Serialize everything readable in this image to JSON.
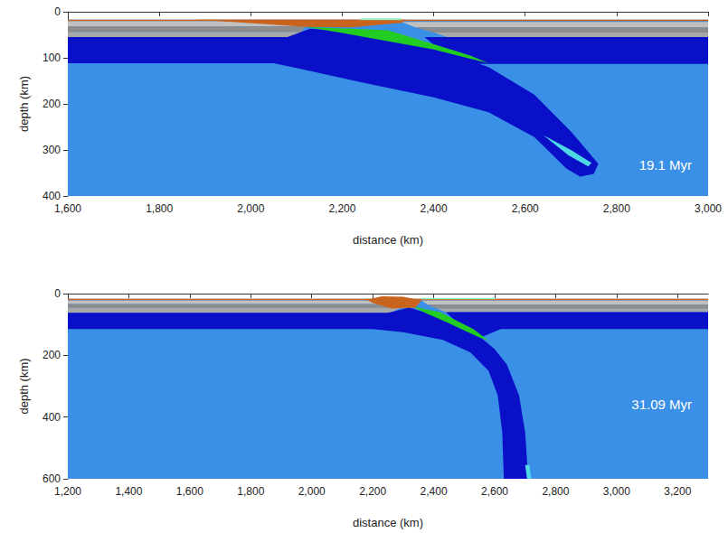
{
  "chart_data": [
    {
      "type": "polygon",
      "x_label": "distance (km)",
      "y_label": "depth (km)",
      "xlim": [
        1600,
        3000
      ],
      "xticks": [
        1600,
        1800,
        2000,
        2200,
        2400,
        2600,
        2800,
        3000
      ],
      "ylim": [
        400,
        0
      ],
      "yticks": [
        0,
        100,
        200,
        300,
        400
      ],
      "annotation": "19.1 Myr",
      "series": [
        {
          "color": "#3a8fe6",
          "values": [
            [
              1600,
              17
            ],
            [
              3000,
              17
            ],
            [
              3000,
              400
            ],
            [
              1600,
              400
            ]
          ]
        },
        {
          "color": "#c0c0c0",
          "values": [
            [
              1600,
              20
            ],
            [
              2110,
              20
            ],
            [
              2120,
              32
            ],
            [
              1600,
              32
            ]
          ]
        },
        {
          "color": "#8c8c8c",
          "values": [
            [
              1600,
              32
            ],
            [
              2120,
              32
            ],
            [
              2110,
              44
            ],
            [
              1600,
              44
            ]
          ]
        },
        {
          "color": "#a8a8a8",
          "values": [
            [
              1600,
              44
            ],
            [
              2110,
              44
            ],
            [
              2090,
              55
            ],
            [
              1600,
              55
            ]
          ]
        },
        {
          "color": "#c0c0c0",
          "values": [
            [
              2330,
              22
            ],
            [
              3000,
              22
            ],
            [
              3000,
              34
            ],
            [
              2360,
              34
            ]
          ]
        },
        {
          "color": "#8c8c8c",
          "values": [
            [
              2360,
              34
            ],
            [
              3000,
              34
            ],
            [
              3000,
              45
            ],
            [
              2400,
              45
            ]
          ]
        },
        {
          "color": "#a8a8a8",
          "values": [
            [
              2400,
              45
            ],
            [
              3000,
              45
            ],
            [
              3000,
              55
            ],
            [
              2430,
              55
            ]
          ]
        },
        {
          "color": "#0a10c8",
          "values": [
            [
              2380,
              55
            ],
            [
              3000,
              55
            ],
            [
              3000,
              113
            ],
            [
              2480,
              113
            ],
            [
              2420,
              88
            ]
          ]
        },
        {
          "color": "#0a10c8",
          "values": [
            [
              1600,
              55
            ],
            [
              2080,
              55
            ],
            [
              2130,
              37
            ],
            [
              2250,
              45
            ],
            [
              2400,
              80
            ],
            [
              2520,
              120
            ],
            [
              2620,
              180
            ],
            [
              2700,
              260
            ],
            [
              2760,
              330
            ],
            [
              2750,
              352
            ],
            [
              2720,
              358
            ],
            [
              2690,
              340
            ],
            [
              2620,
              272
            ],
            [
              2520,
              218
            ],
            [
              2400,
              186
            ],
            [
              2250,
              155
            ],
            [
              2100,
              122
            ],
            [
              2050,
              112
            ],
            [
              1600,
              112
            ]
          ]
        },
        {
          "color": "#22cc22",
          "values": [
            [
              2120,
              33
            ],
            [
              2300,
              40
            ],
            [
              2480,
              95
            ],
            [
              2520,
              112
            ],
            [
              2400,
              82
            ],
            [
              2200,
              46
            ]
          ]
        },
        {
          "color": "#4fd7e6",
          "values": [
            [
              2640,
              268
            ],
            [
              2700,
              300
            ],
            [
              2745,
              328
            ],
            [
              2738,
              336
            ],
            [
              2695,
              312
            ]
          ]
        },
        {
          "color": "#c8641e",
          "values": [
            [
              1880,
              17
            ],
            [
              2340,
              17
            ],
            [
              2330,
              24
            ],
            [
              2220,
              34
            ],
            [
              2120,
              33
            ],
            [
              1960,
              22
            ]
          ]
        },
        {
          "color": "#c8641e",
          "values": [
            [
              1600,
              17
            ],
            [
              3000,
              17
            ],
            [
              3000,
              20
            ],
            [
              1600,
              20
            ]
          ]
        },
        {
          "color": "#90f0c0",
          "values": [
            [
              2240,
              14
            ],
            [
              2330,
              14
            ],
            [
              2330,
              18
            ],
            [
              2240,
              18
            ]
          ]
        }
      ]
    },
    {
      "type": "polygon",
      "x_label": "distance (km)",
      "y_label": "depth (km)",
      "xlim": [
        1200,
        3300
      ],
      "xticks": [
        1200,
        1400,
        1600,
        1800,
        2000,
        2200,
        2400,
        2600,
        2800,
        3000,
        3200
      ],
      "ylim": [
        600,
        0
      ],
      "yticks": [
        0,
        200,
        400,
        600
      ],
      "annotation": "31.09 Myr",
      "series": [
        {
          "color": "#3a8fe6",
          "values": [
            [
              1200,
              17
            ],
            [
              3300,
              17
            ],
            [
              3300,
              600
            ],
            [
              1200,
              600
            ]
          ]
        },
        {
          "color": "#c0c0c0",
          "values": [
            [
              1200,
              22
            ],
            [
              2290,
              22
            ],
            [
              2300,
              34
            ],
            [
              1200,
              34
            ]
          ]
        },
        {
          "color": "#8c8c8c",
          "values": [
            [
              1200,
              34
            ],
            [
              2300,
              34
            ],
            [
              2290,
              46
            ],
            [
              1200,
              46
            ]
          ]
        },
        {
          "color": "#a8a8a8",
          "values": [
            [
              1200,
              46
            ],
            [
              2290,
              46
            ],
            [
              2260,
              62
            ],
            [
              1200,
              62
            ]
          ]
        },
        {
          "color": "#c0c0c0",
          "values": [
            [
              2360,
              22
            ],
            [
              3300,
              22
            ],
            [
              3300,
              36
            ],
            [
              2380,
              36
            ]
          ]
        },
        {
          "color": "#8c8c8c",
          "values": [
            [
              2380,
              36
            ],
            [
              3300,
              36
            ],
            [
              3300,
              48
            ],
            [
              2410,
              48
            ]
          ]
        },
        {
          "color": "#a8a8a8",
          "values": [
            [
              2410,
              48
            ],
            [
              3300,
              48
            ],
            [
              3300,
              60
            ],
            [
              2440,
              60
            ]
          ]
        },
        {
          "color": "#0a10c8",
          "values": [
            [
              2440,
              60
            ],
            [
              3300,
              60
            ],
            [
              3300,
              115
            ],
            [
              2620,
              115
            ],
            [
              2560,
              140
            ],
            [
              2470,
              88
            ]
          ]
        },
        {
          "color": "#0a10c8",
          "values": [
            [
              1200,
              62
            ],
            [
              2250,
              62
            ],
            [
              2320,
              45
            ],
            [
              2450,
              85
            ],
            [
              2540,
              130
            ],
            [
              2600,
              180
            ],
            [
              2640,
              230
            ],
            [
              2680,
              330
            ],
            [
              2700,
              450
            ],
            [
              2710,
              600
            ],
            [
              2630,
              600
            ],
            [
              2625,
              450
            ],
            [
              2610,
              330
            ],
            [
              2580,
              250
            ],
            [
              2520,
              190
            ],
            [
              2430,
              150
            ],
            [
              2300,
              125
            ],
            [
              2200,
              115
            ],
            [
              1200,
              115
            ]
          ]
        },
        {
          "color": "#22cc22",
          "values": [
            [
              2330,
              42
            ],
            [
              2420,
              60
            ],
            [
              2530,
              115
            ],
            [
              2580,
              152
            ],
            [
              2550,
              142
            ],
            [
              2450,
              96
            ],
            [
              2380,
              66
            ]
          ]
        },
        {
          "color": "#4fd7e6",
          "values": [
            [
              2700,
              555
            ],
            [
              2714,
              555
            ],
            [
              2720,
              600
            ],
            [
              2706,
              600
            ]
          ]
        },
        {
          "color": "#c8641e",
          "values": [
            [
              1200,
              17
            ],
            [
              3300,
              17
            ],
            [
              3300,
              21
            ],
            [
              1200,
              21
            ]
          ]
        },
        {
          "color": "#c8641e",
          "values": [
            [
              2180,
              20
            ],
            [
              2230,
              9
            ],
            [
              2300,
              10
            ],
            [
              2360,
              22
            ],
            [
              2340,
              45
            ],
            [
              2260,
              48
            ],
            [
              2200,
              30
            ]
          ]
        },
        {
          "color": "#90f0c0",
          "values": [
            [
              2360,
              14
            ],
            [
              2600,
              14
            ],
            [
              2600,
              18
            ],
            [
              2360,
              18
            ]
          ]
        }
      ]
    }
  ]
}
